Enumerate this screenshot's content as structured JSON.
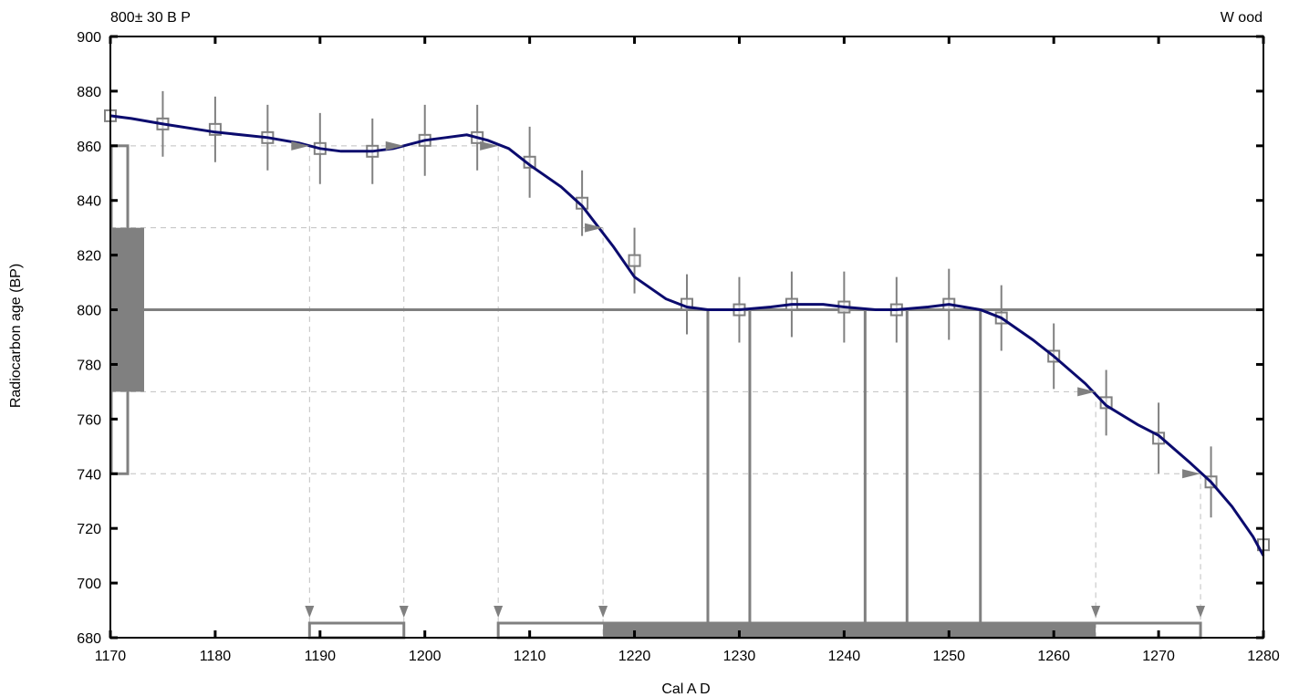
{
  "colors": {
    "curve": "#0b0b6e",
    "gray": "#808080",
    "light_gray": "#c0c0c0",
    "axis": "#000000"
  },
  "chart_data": {
    "type": "line",
    "title_left": "800± 30 B P",
    "title_right": "W ood",
    "xlabel": "Cal A D",
    "ylabel": "Radiocarbon age (BP)",
    "xlim": [
      1170,
      1280
    ],
    "ylim": [
      680,
      900
    ],
    "xticks": [
      1170,
      1180,
      1190,
      1200,
      1210,
      1220,
      1230,
      1240,
      1250,
      1260,
      1270,
      1280
    ],
    "yticks": [
      680,
      700,
      720,
      740,
      760,
      780,
      800,
      820,
      840,
      860,
      880,
      900
    ],
    "sample": {
      "age": 800,
      "error": 30,
      "sigma1": [
        770,
        830
      ],
      "sigma2": [
        740,
        860
      ]
    },
    "curve": {
      "x": [
        1170,
        1172,
        1175,
        1180,
        1185,
        1188,
        1190,
        1192,
        1195,
        1197,
        1200,
        1202,
        1204,
        1206,
        1208,
        1210,
        1213,
        1215,
        1218,
        1220,
        1223,
        1225,
        1227,
        1230,
        1233,
        1235,
        1238,
        1240,
        1243,
        1245,
        1248,
        1250,
        1253,
        1255,
        1258,
        1260,
        1263,
        1265,
        1268,
        1270,
        1273,
        1275,
        1277,
        1279,
        1280
      ],
      "y": [
        871,
        870,
        868,
        865,
        863,
        861,
        859,
        858,
        858,
        859,
        862,
        863,
        864,
        862,
        859,
        853,
        845,
        838,
        823,
        812,
        804,
        801,
        800,
        800,
        801,
        802,
        802,
        801,
        800,
        800,
        801,
        802,
        800,
        797,
        789,
        783,
        773,
        765,
        758,
        754,
        744,
        737,
        728,
        717,
        710
      ]
    },
    "dataset_points": [
      {
        "x": 1170,
        "y": 871,
        "err": 12
      },
      {
        "x": 1175,
        "y": 868,
        "err": 12
      },
      {
        "x": 1180,
        "y": 866,
        "err": 12
      },
      {
        "x": 1185,
        "y": 863,
        "err": 12
      },
      {
        "x": 1190,
        "y": 859,
        "err": 13
      },
      {
        "x": 1195,
        "y": 858,
        "err": 12
      },
      {
        "x": 1200,
        "y": 862,
        "err": 13
      },
      {
        "x": 1205,
        "y": 863,
        "err": 12
      },
      {
        "x": 1210,
        "y": 854,
        "err": 13
      },
      {
        "x": 1215,
        "y": 839,
        "err": 12
      },
      {
        "x": 1220,
        "y": 818,
        "err": 12
      },
      {
        "x": 1225,
        "y": 802,
        "err": 11
      },
      {
        "x": 1230,
        "y": 800,
        "err": 12
      },
      {
        "x": 1235,
        "y": 802,
        "err": 12
      },
      {
        "x": 1240,
        "y": 801,
        "err": 13
      },
      {
        "x": 1245,
        "y": 800,
        "err": 12
      },
      {
        "x": 1250,
        "y": 802,
        "err": 13
      },
      {
        "x": 1255,
        "y": 797,
        "err": 12
      },
      {
        "x": 1260,
        "y": 783,
        "err": 12
      },
      {
        "x": 1265,
        "y": 766,
        "err": 12
      },
      {
        "x": 1270,
        "y": 753,
        "err": 13
      },
      {
        "x": 1275,
        "y": 737,
        "err": 13
      },
      {
        "x": 1280,
        "y": 714,
        "err": 13
      }
    ],
    "intercepts": [
      {
        "age": 860,
        "x": [
          1189,
          1198,
          1207
        ]
      },
      {
        "age": 830,
        "x": [
          1217
        ]
      },
      {
        "age": 770,
        "x": [
          1264
        ]
      },
      {
        "age": 740,
        "x": [
          1274
        ]
      }
    ],
    "intercept_800_x": [
      1227,
      1231,
      1242,
      1246,
      1253
    ],
    "range_2sigma": [
      [
        1189,
        1198
      ],
      [
        1207,
        1274
      ]
    ],
    "range_1sigma": [
      [
        1217,
        1264
      ]
    ]
  }
}
